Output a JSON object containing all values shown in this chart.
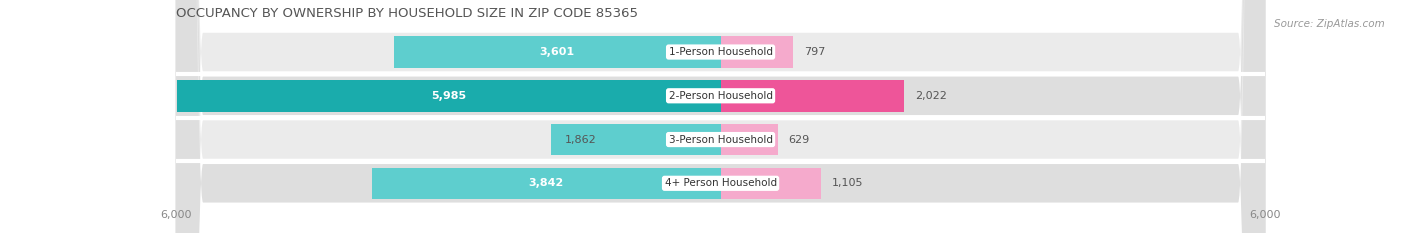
{
  "title": "OCCUPANCY BY OWNERSHIP BY HOUSEHOLD SIZE IN ZIP CODE 85365",
  "source": "Source: ZipAtlas.com",
  "categories": [
    "1-Person Household",
    "2-Person Household",
    "3-Person Household",
    "4+ Person Household"
  ],
  "owner_values": [
    3601,
    5985,
    1862,
    3842
  ],
  "renter_values": [
    797,
    2022,
    629,
    1105
  ],
  "owner_color_light": "#5ECECE",
  "owner_color_dark": "#1AACAC",
  "renter_color_light": "#F5AACC",
  "renter_color_dark": "#EE5599",
  "owner_colors": [
    "#5ECECE",
    "#1AACAC",
    "#5ECECE",
    "#5ECECE"
  ],
  "renter_colors": [
    "#F5AACC",
    "#EE5599",
    "#F5AACC",
    "#F5AACC"
  ],
  "row_bg_odd": "#EBEBEB",
  "row_bg_even": "#DEDEDE",
  "separator_color": "#FFFFFF",
  "xlim": 6000,
  "axis_tick_label": "6,000",
  "title_fontsize": 9.5,
  "source_fontsize": 7.5,
  "bar_label_fontsize": 8,
  "category_fontsize": 7.5,
  "axis_fontsize": 8,
  "bg_color": "#FFFFFF",
  "plot_bg_color": "#EBEBEB"
}
